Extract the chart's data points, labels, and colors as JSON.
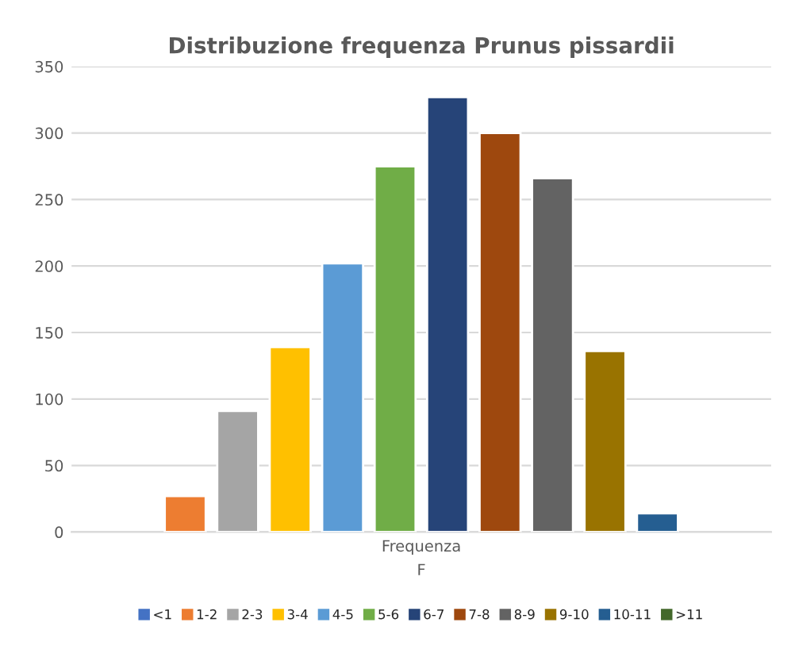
{
  "chart_data": {
    "type": "bar",
    "title": "Distribuzione frequenza Prunus pissardii",
    "xlabel": "F",
    "categories": [
      "Frequenza"
    ],
    "series": [
      {
        "name": "<1",
        "color": "#4472c4",
        "values": [
          null
        ]
      },
      {
        "name": "1-2",
        "color": "#ed7d31",
        "values": [
          27
        ]
      },
      {
        "name": "2-3",
        "color": "#a5a5a5",
        "values": [
          91
        ]
      },
      {
        "name": "3-4",
        "color": "#ffc000",
        "values": [
          139
        ]
      },
      {
        "name": "4-5",
        "color": "#5b9bd5",
        "values": [
          202
        ]
      },
      {
        "name": "5-6",
        "color": "#70ad47",
        "values": [
          275
        ]
      },
      {
        "name": "6-7",
        "color": "#264478",
        "values": [
          327
        ]
      },
      {
        "name": "7-8",
        "color": "#9e480e",
        "values": [
          300
        ]
      },
      {
        "name": "8-9",
        "color": "#636363",
        "values": [
          266
        ]
      },
      {
        "name": "9-10",
        "color": "#997300",
        "values": [
          136
        ]
      },
      {
        "name": "10-11",
        "color": "#255e91",
        "values": [
          14
        ]
      },
      {
        "name": ">11",
        "color": "#43682b",
        "values": [
          null
        ]
      }
    ],
    "ylim": [
      0,
      350
    ],
    "yticks": [
      0,
      50,
      100,
      150,
      200,
      250,
      300,
      350
    ],
    "grid": "y",
    "legend": "bottom"
  }
}
